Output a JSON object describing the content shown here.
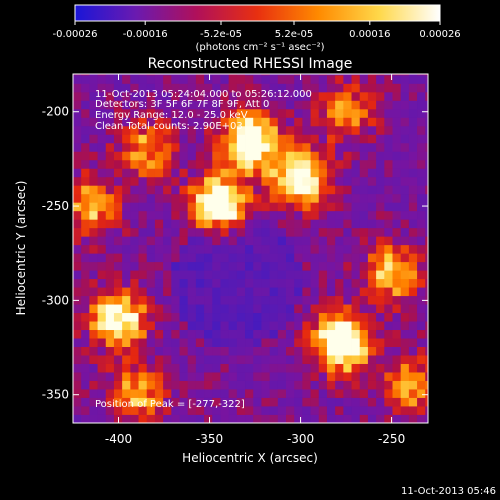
{
  "colorbar": {
    "ticks": [
      "-0.00026",
      "-0.00016",
      "-5.2e-05",
      "5.2e-05",
      "0.00016",
      "0.00026"
    ],
    "tick_values": [
      -0.00026,
      -0.00016,
      -5.2e-05,
      5.2e-05,
      0.00016,
      0.00026
    ],
    "range": [
      -0.00026,
      0.00026
    ],
    "unit_label": "(photons cm⁻² s⁻¹ asec⁻²)",
    "colors": [
      "#1a16d8",
      "#6a1ab0",
      "#b0105a",
      "#e83010",
      "#ff8a00",
      "#ffd84a",
      "#ffffff"
    ]
  },
  "chart_data": {
    "type": "heatmap",
    "title": "Reconstructed RHESSI Image",
    "xlabel": "Heliocentric X (arcsec)",
    "ylabel": "Heliocentric Y (arcsec)",
    "xlim": [
      -425,
      -230
    ],
    "ylim": [
      -365,
      -180
    ],
    "x_ticks": [
      -400,
      -350,
      -300,
      -250
    ],
    "y_ticks": [
      -200,
      -250,
      -300,
      -350
    ],
    "annotations": [
      "11-Oct-2013 05:24:04.000 to 05:26:12.000",
      "Detectors: 3F 5F 6F 7F 8F 9F, Att 0",
      "Energy Range: 12.0 - 25.0 keV",
      "Clean    Total counts: 2.90E+03"
    ],
    "peak_label": "Position of Peak = [-277,-322]",
    "peak_position": [
      -277,
      -322
    ],
    "bright_sources": [
      {
        "x": -345,
        "y": -250,
        "intensity": 1.0
      },
      {
        "x": -328,
        "y": -215,
        "intensity": 0.9
      },
      {
        "x": -300,
        "y": -235,
        "intensity": 0.85
      },
      {
        "x": -277,
        "y": -322,
        "intensity": 1.0
      },
      {
        "x": -400,
        "y": -310,
        "intensity": 0.8
      },
      {
        "x": -250,
        "y": -285,
        "intensity": 0.6
      },
      {
        "x": -415,
        "y": -250,
        "intensity": 0.55
      },
      {
        "x": -385,
        "y": -220,
        "intensity": 0.5
      },
      {
        "x": -390,
        "y": -350,
        "intensity": 0.55
      },
      {
        "x": -240,
        "y": -345,
        "intensity": 0.5
      },
      {
        "x": -275,
        "y": -200,
        "intensity": 0.45
      }
    ]
  },
  "footer": {
    "timestamp": "11-Oct-2013 05:46"
  }
}
